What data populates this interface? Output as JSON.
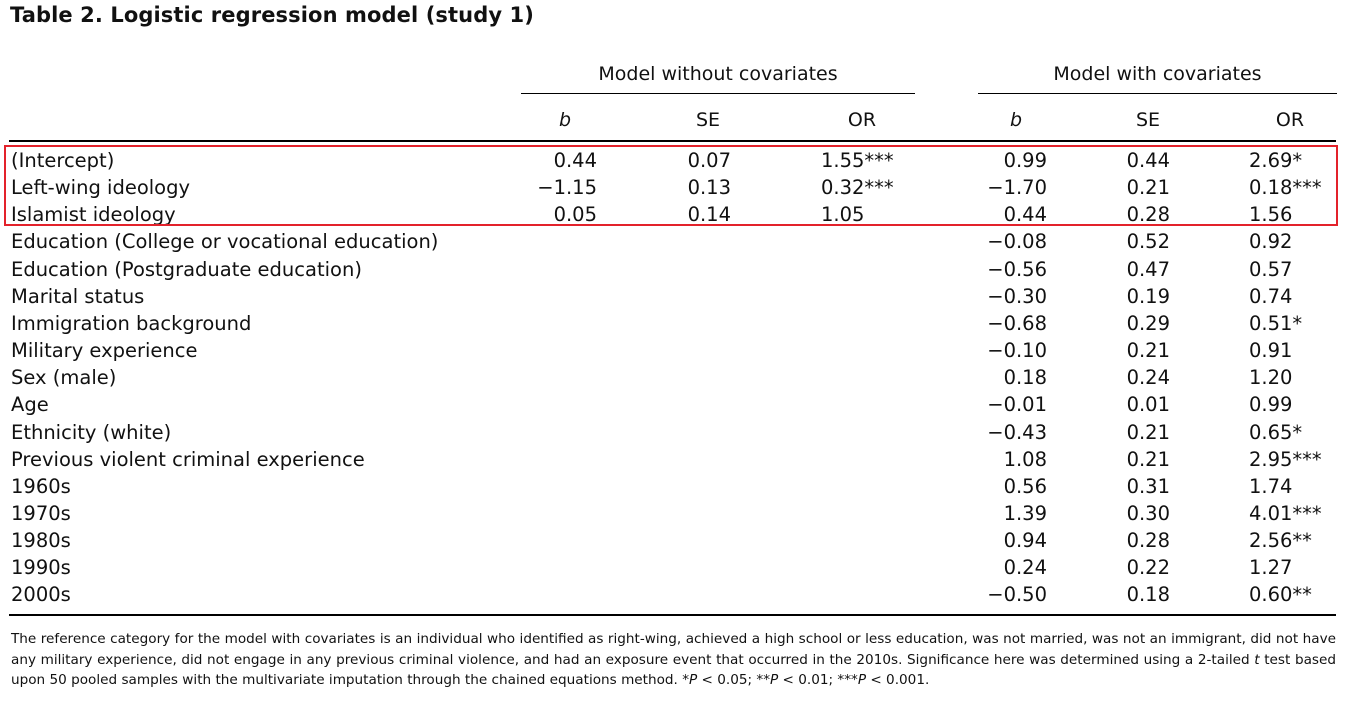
{
  "title": "Table 2. Logistic regression model (study 1)",
  "groups": {
    "without": "Model without covariates",
    "with": "Model with covariates"
  },
  "columns": {
    "b": "b",
    "se": "SE",
    "or": "OR"
  },
  "rows": [
    {
      "label": "(Intercept)",
      "b1": "0.44",
      "se1": "0.07",
      "or1": "1.55***",
      "b2": "0.99",
      "se2": "0.44",
      "or2": "2.69*"
    },
    {
      "label": "Left-wing ideology",
      "b1": "−1.15",
      "se1": "0.13",
      "or1": "0.32***",
      "b2": "−1.70",
      "se2": "0.21",
      "or2": "0.18***"
    },
    {
      "label": "Islamist ideology",
      "b1": "0.05",
      "se1": "0.14",
      "or1": "1.05",
      "b2": "0.44",
      "se2": "0.28",
      "or2": "1.56"
    },
    {
      "label": "Education (College or vocational education)",
      "b1": "",
      "se1": "",
      "or1": "",
      "b2": "−0.08",
      "se2": "0.52",
      "or2": "0.92"
    },
    {
      "label": "Education (Postgraduate education)",
      "b1": "",
      "se1": "",
      "or1": "",
      "b2": "−0.56",
      "se2": "0.47",
      "or2": "0.57"
    },
    {
      "label": "Marital status",
      "b1": "",
      "se1": "",
      "or1": "",
      "b2": "−0.30",
      "se2": "0.19",
      "or2": "0.74"
    },
    {
      "label": "Immigration background",
      "b1": "",
      "se1": "",
      "or1": "",
      "b2": "−0.68",
      "se2": "0.29",
      "or2": "0.51*"
    },
    {
      "label": "Military experience",
      "b1": "",
      "se1": "",
      "or1": "",
      "b2": "−0.10",
      "se2": "0.21",
      "or2": "0.91"
    },
    {
      "label": "Sex (male)",
      "b1": "",
      "se1": "",
      "or1": "",
      "b2": "0.18",
      "se2": "0.24",
      "or2": "1.20"
    },
    {
      "label": "Age",
      "b1": "",
      "se1": "",
      "or1": "",
      "b2": "−0.01",
      "se2": "0.01",
      "or2": "0.99"
    },
    {
      "label": "Ethnicity (white)",
      "b1": "",
      "se1": "",
      "or1": "",
      "b2": "−0.43",
      "se2": "0.21",
      "or2": "0.65*"
    },
    {
      "label": "Previous violent criminal experience",
      "b1": "",
      "se1": "",
      "or1": "",
      "b2": "1.08",
      "se2": "0.21",
      "or2": "2.95***"
    },
    {
      "label": "1960s",
      "b1": "",
      "se1": "",
      "or1": "",
      "b2": "0.56",
      "se2": "0.31",
      "or2": "1.74"
    },
    {
      "label": "1970s",
      "b1": "",
      "se1": "",
      "or1": "",
      "b2": "1.39",
      "se2": "0.30",
      "or2": "4.01***"
    },
    {
      "label": "1980s",
      "b1": "",
      "se1": "",
      "or1": "",
      "b2": "0.94",
      "se2": "0.28",
      "or2": "2.56**"
    },
    {
      "label": "1990s",
      "b1": "",
      "se1": "",
      "or1": "",
      "b2": "0.24",
      "se2": "0.22",
      "or2": "1.27"
    },
    {
      "label": "2000s",
      "b1": "",
      "se1": "",
      "or1": "",
      "b2": "−0.50",
      "se2": "0.18",
      "or2": "0.60**"
    }
  ],
  "note": {
    "text1": "The reference category for the model with covariates is an individual who identified as right-wing, achieved a high school or less education, was not married, was not an immigrant, did not have any military experience, did not engage in any previous criminal violence, and had an exposure event that occurred in the 2010s. Significance here was determined using a 2-tailed ",
    "t": "t",
    "text2": " test based upon 50 pooled samples with the multivariate imputation through the chained equations method. *",
    "p": "P",
    "text3": " < 0.05; **",
    "text4": " < 0.01; ***",
    "text5": " < 0.001."
  },
  "colors": {
    "highlight_border": "#e3222b"
  }
}
